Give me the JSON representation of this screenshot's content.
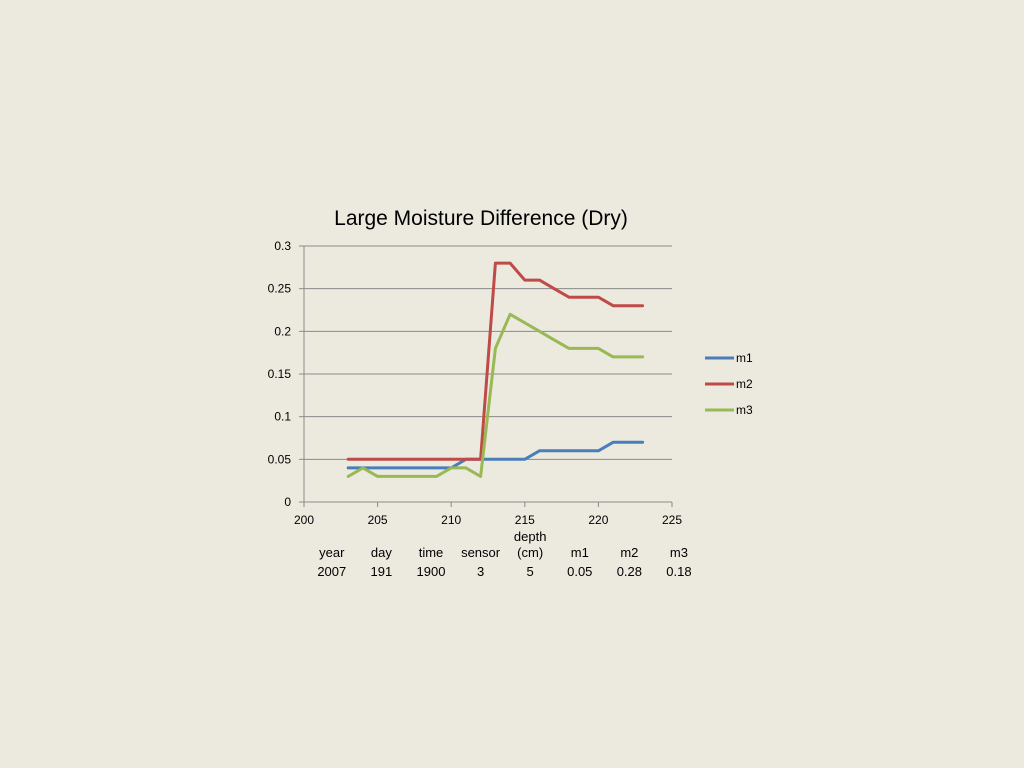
{
  "chart_data": {
    "type": "line",
    "title": "Large Moisture Difference (Dry)",
    "xlabel": "",
    "ylabel": "",
    "xlim": [
      200,
      225
    ],
    "ylim": [
      0,
      0.3
    ],
    "x_ticks": [
      "200",
      "205",
      "210",
      "215",
      "220",
      "225"
    ],
    "y_ticks": [
      "0",
      "0.05",
      "0.1",
      "0.15",
      "0.2",
      "0.25",
      "0.3"
    ],
    "grid": true,
    "legend_position": "right",
    "x": [
      203,
      204,
      205,
      206,
      207,
      208,
      209,
      210,
      211,
      212,
      213,
      214,
      215,
      216,
      217,
      218,
      219,
      220,
      221,
      222,
      223
    ],
    "series": [
      {
        "name": "m1",
        "color": "#4a7ebb",
        "values": [
          0.04,
          0.04,
          0.04,
          0.04,
          0.04,
          0.04,
          0.04,
          0.04,
          0.05,
          0.05,
          0.05,
          0.05,
          0.05,
          0.06,
          0.06,
          0.06,
          0.06,
          0.06,
          0.07,
          0.07,
          0.07
        ]
      },
      {
        "name": "m2",
        "color": "#be4b48",
        "values": [
          0.05,
          0.05,
          0.05,
          0.05,
          0.05,
          0.05,
          0.05,
          0.05,
          0.05,
          0.05,
          0.28,
          0.28,
          0.26,
          0.26,
          0.25,
          0.24,
          0.24,
          0.24,
          0.23,
          0.23,
          0.23
        ]
      },
      {
        "name": "m3",
        "color": "#98b954",
        "values": [
          0.03,
          0.04,
          0.03,
          0.03,
          0.03,
          0.03,
          0.03,
          0.04,
          0.04,
          0.03,
          0.18,
          0.22,
          0.21,
          0.2,
          0.19,
          0.18,
          0.18,
          0.18,
          0.17,
          0.17,
          0.17
        ]
      }
    ]
  },
  "info_table": {
    "headers": [
      "year",
      "day",
      "time",
      "sensor",
      [
        "depth",
        "(cm)"
      ],
      "m1",
      "m2",
      "m3"
    ],
    "values": [
      "2007",
      "191",
      "1900",
      "3",
      "5",
      "0.05",
      "0.28",
      "0.18"
    ]
  }
}
